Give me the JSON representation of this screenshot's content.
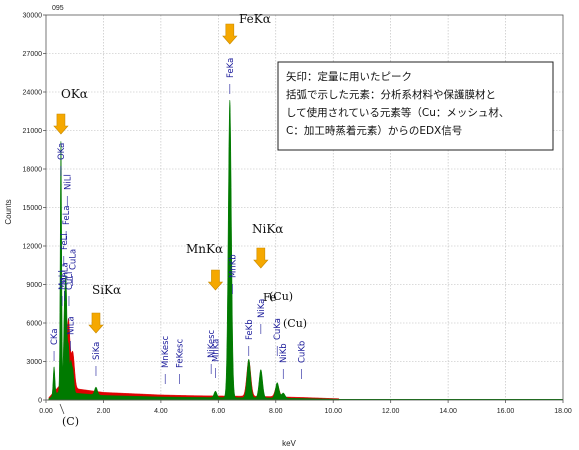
{
  "chart_data": {
    "type": "line",
    "corner_label": "095",
    "xlabel": "keV",
    "ylabel": "Counts",
    "xlim": [
      0,
      18
    ],
    "ylim": [
      0,
      30000
    ],
    "x_ticks": [
      "0.00",
      "2.00",
      "4.00",
      "6.00",
      "8.00",
      "10.00",
      "12.00",
      "14.00",
      "16.00",
      "18.00"
    ],
    "y_ticks": [
      "0",
      "3000",
      "6000",
      "9000",
      "12000",
      "15000",
      "18000",
      "21000",
      "24000",
      "27000",
      "30000"
    ],
    "grid": true,
    "series": [
      {
        "color_main": "#007a00",
        "color_overlap": "#e00000",
        "peaks": [
          {
            "x": 0.28,
            "y": 2200,
            "w": 0.03
          },
          {
            "x": 0.52,
            "y": 19500,
            "w": 0.025
          },
          {
            "x": 0.64,
            "y": 6000,
            "w": 0.03
          },
          {
            "x": 0.7,
            "y": 8000,
            "w": 0.03
          },
          {
            "x": 0.78,
            "y": 3500,
            "w": 0.03
          },
          {
            "x": 0.86,
            "y": 2000,
            "w": 0.03
          },
          {
            "x": 0.93,
            "y": 1800,
            "w": 0.04
          },
          {
            "x": 1.74,
            "y": 600,
            "w": 0.05
          },
          {
            "x": 5.9,
            "y": 500,
            "w": 0.05
          },
          {
            "x": 6.4,
            "y": 23200,
            "w": 0.055
          },
          {
            "x": 7.06,
            "y": 3000,
            "w": 0.06
          },
          {
            "x": 7.48,
            "y": 2200,
            "w": 0.06
          },
          {
            "x": 8.05,
            "y": 1200,
            "w": 0.06
          },
          {
            "x": 8.26,
            "y": 400,
            "w": 0.06
          }
        ],
        "overlap_peaks": [
          {
            "x": 0.78,
            "y": 5200,
            "w": 0.05
          },
          {
            "x": 0.93,
            "y": 2800,
            "w": 0.06
          },
          {
            "x": 7.06,
            "y": 2800,
            "w": 0.07
          },
          {
            "x": 8.05,
            "y": 900,
            "w": 0.07
          }
        ],
        "continuum": [
          [
            0.1,
            200
          ],
          [
            0.5,
            1200
          ],
          [
            1.0,
            900
          ],
          [
            2.0,
            600
          ],
          [
            3.0,
            500
          ],
          [
            4.0,
            400
          ],
          [
            5.0,
            350
          ],
          [
            6.0,
            320
          ],
          [
            7.0,
            300
          ],
          [
            8.0,
            260
          ],
          [
            9.0,
            200
          ],
          [
            10.0,
            120
          ],
          [
            11.0,
            60
          ],
          [
            12.0,
            30
          ],
          [
            14.0,
            10
          ],
          [
            18.0,
            0
          ]
        ]
      }
    ],
    "peak_labels": [
      {
        "text": "CKa",
        "x": 0.28
      },
      {
        "text": "OKa",
        "x": 0.52
      },
      {
        "text": "MnLl",
        "x": 0.56
      },
      {
        "text": "FeLl",
        "x": 0.62
      },
      {
        "text": "FeLa",
        "x": 0.7
      },
      {
        "text": "NiLl",
        "x": 0.74
      },
      {
        "text": "MnLa",
        "x": 0.64
      },
      {
        "text": "CuLl",
        "x": 0.8
      },
      {
        "text": "NiLa",
        "x": 0.85
      },
      {
        "text": "CuLa",
        "x": 0.93
      },
      {
        "text": "SiKa",
        "x": 1.74
      },
      {
        "text": "MnKesc",
        "x": 4.15
      },
      {
        "text": "FeKesc",
        "x": 4.65
      },
      {
        "text": "MnKa",
        "x": 5.9
      },
      {
        "text": "NiKesc",
        "x": 5.75
      },
      {
        "text": "FeKa",
        "x": 6.4
      },
      {
        "text": "MnKb",
        "x": 6.49
      },
      {
        "text": "FeKb",
        "x": 7.06
      },
      {
        "text": "NiKa",
        "x": 7.48
      },
      {
        "text": "CuKa",
        "x": 8.05
      },
      {
        "text": "NiKb",
        "x": 8.26
      },
      {
        "text": "CuKb",
        "x": 8.9
      }
    ],
    "callouts": [
      {
        "text": "FeKα",
        "arrow_x": 6.4
      },
      {
        "text": "OKα",
        "arrow_x": 0.52
      },
      {
        "text": "MnKα",
        "arrow_x": 5.9
      },
      {
        "text": "NiKα",
        "arrow_x": 7.48
      },
      {
        "text": "SiKα",
        "arrow_x": 1.74
      }
    ],
    "paren_labels": [
      "(C)",
      "(Cu)",
      "(Cu)"
    ],
    "annotation_box": {
      "lines": [
        "矢印：定量に用いたピーク",
        "括弧で示した元素：分析系材料や保護膜材と",
        "して使用されている元素等（Cu：メッシュ材、",
        "C：加工時蒸着元素）からのEDX信号"
      ]
    },
    "fe_prefix": "Fe"
  }
}
